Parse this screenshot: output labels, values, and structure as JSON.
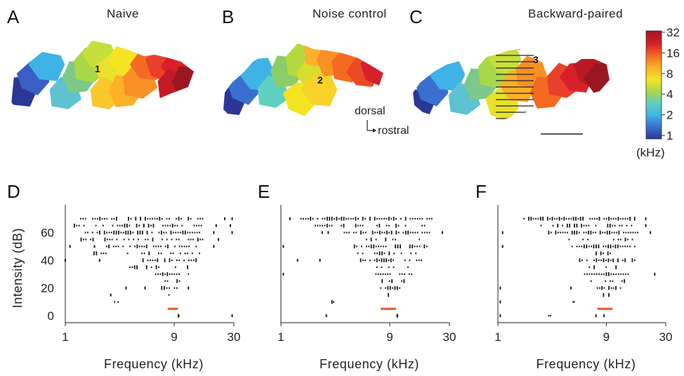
{
  "colors": {
    "text": "#222222",
    "marker": "#1a1a1a",
    "bestfreq_bar": "#e8552b",
    "colormap": [
      "#2a3797",
      "#3a6fcf",
      "#3fb3e6",
      "#5fd0c0",
      "#a8d84a",
      "#f5e424",
      "#fbb12a",
      "#f56a22",
      "#d8202a",
      "#9a1722"
    ]
  },
  "maps": [
    {
      "label": "A",
      "title": "Naive",
      "site": "1",
      "cells": [
        "#2a3797",
        "#3a5fc4",
        "#3fb3e6",
        "#5fc2d0",
        "#7cc98a",
        "#a8d84a",
        "#c7df3a",
        "#e8e22a",
        "#f5e424",
        "#f9c82a",
        "#fbb12a",
        "#f89025",
        "#f56a22",
        "#e8402a",
        "#d8202a",
        "#c51a26",
        "#9a1722"
      ]
    },
    {
      "label": "B",
      "title": "Noise control",
      "site": "2",
      "cells": [
        "#2a3797",
        "#3a6fcf",
        "#3fb3e6",
        "#5fd0c0",
        "#8ccc6a",
        "#b3d93f",
        "#d8de2e",
        "#f5e424",
        "#f8d228",
        "#fbb12a",
        "#f89025",
        "#f56a22",
        "#ec4a25",
        "#d8202a"
      ]
    },
    {
      "label": "C",
      "title": "Backward-paired",
      "site": "3",
      "cells": [
        "#2a3797",
        "#3a6fcf",
        "#3fb3e6",
        "#5fc2d0",
        "#7cc98a",
        "#a8d84a",
        "#c7df3a",
        "#e8e22a",
        "#fbb12a",
        "#f89025",
        "#f56a22",
        "#e8402a",
        "#d8202a",
        "#b81b25",
        "#9a1722"
      ]
    }
  ],
  "orientation": {
    "dorsal": "dorsal",
    "rostral": "rostral"
  },
  "colorbar": {
    "tick_labels": [
      "32",
      "16",
      "8",
      "4",
      "2",
      "1"
    ],
    "unit": "(kHz)"
  },
  "chart_data": [
    {
      "type": "scatter",
      "label": "D",
      "xlabel": "Frequency (kHz)",
      "ylabel": "Intensity (dB)",
      "x_scale": "log",
      "xlim": [
        1,
        30
      ],
      "ylim": [
        -5,
        80
      ],
      "x_tick_labels": [
        "1",
        "9",
        "30"
      ],
      "x_ticks": [
        1,
        9,
        30
      ],
      "y_tick_labels": [
        "0",
        "20",
        "40",
        "60"
      ],
      "y_ticks": [
        0,
        20,
        40,
        60
      ],
      "threshold_intensity": 0,
      "best_frequency_bar_khz": [
        7.9,
        9.7
      ],
      "best_frequency_bar_db": 5,
      "rows": [
        {
          "db": 70,
          "f_min": 1.3,
          "f_max": 16,
          "density": 0.7,
          "extra": [
            25,
            29
          ]
        },
        {
          "db": 65,
          "f_min": 1.2,
          "f_max": 18,
          "density": 0.55,
          "extra": [
            21,
            28
          ]
        },
        {
          "db": 60,
          "f_min": 1.5,
          "f_max": 15,
          "density": 0.75,
          "extra": [
            20,
            29
          ]
        },
        {
          "db": 55,
          "f_min": 1.25,
          "f_max": 16,
          "density": 0.45,
          "extra": [
            22
          ]
        },
        {
          "db": 50,
          "f_min": 2.3,
          "f_max": 14,
          "density": 0.8,
          "extra": [
            1.1,
            1.8,
            20
          ]
        },
        {
          "db": 45,
          "f_min": 1.7,
          "f_max": 15,
          "density": 0.35,
          "extra": []
        },
        {
          "db": 40,
          "f_min": 4.8,
          "f_max": 14,
          "density": 0.8,
          "extra": [
            1.0,
            2.0
          ]
        },
        {
          "db": 35,
          "f_min": 3.5,
          "f_max": 13,
          "density": 0.4,
          "extra": []
        },
        {
          "db": 30,
          "f_min": 6.2,
          "f_max": 12,
          "density": 0.8,
          "extra": []
        },
        {
          "db": 25,
          "f_min": 6.5,
          "f_max": 10.5,
          "density": 0.4,
          "extra": []
        },
        {
          "db": 20,
          "f_min": 7.0,
          "f_max": 10,
          "density": 0.85,
          "extra": [
            3.4,
            5.0,
            12
          ]
        },
        {
          "db": 15,
          "f_min": 8.1,
          "f_max": 9.0,
          "density": 0.5,
          "extra": [
            2.5
          ]
        },
        {
          "db": 10,
          "f_min": 2.7,
          "f_max": 2.9,
          "density": 1.0,
          "extra": []
        },
        {
          "db": 5,
          "f_min": 9.2,
          "f_max": 9.3,
          "density": 1.0,
          "extra": []
        },
        {
          "db": 0,
          "f_min": 9.8,
          "f_max": 9.9,
          "density": 1.0,
          "extra": [
            29
          ]
        }
      ]
    },
    {
      "type": "scatter",
      "label": "E",
      "xlabel": "Frequency (kHz)",
      "ylabel": "",
      "x_scale": "log",
      "xlim": [
        1,
        30
      ],
      "ylim": [
        -5,
        80
      ],
      "x_tick_labels": [
        "1",
        "9",
        "30"
      ],
      "x_ticks": [
        1,
        9,
        30
      ],
      "threshold_intensity": 0,
      "best_frequency_bar_khz": [
        7.5,
        10.2
      ],
      "best_frequency_bar_db": 5,
      "rows": [
        {
          "db": 70,
          "f_min": 1.5,
          "f_max": 21,
          "density": 0.85,
          "extra": [
            1.2
          ]
        },
        {
          "db": 65,
          "f_min": 2.0,
          "f_max": 20,
          "density": 0.5,
          "extra": []
        },
        {
          "db": 60,
          "f_min": 3.6,
          "f_max": 20,
          "density": 0.8,
          "extra": [
            2.3,
            2.6,
            26
          ]
        },
        {
          "db": 55,
          "f_min": 4.0,
          "f_max": 18,
          "density": 0.4,
          "extra": []
        },
        {
          "db": 50,
          "f_min": 4.2,
          "f_max": 19,
          "density": 0.8,
          "extra": [
            1.05
          ]
        },
        {
          "db": 45,
          "f_min": 4.5,
          "f_max": 16,
          "density": 0.4,
          "extra": []
        },
        {
          "db": 40,
          "f_min": 5.0,
          "f_max": 17,
          "density": 0.8,
          "extra": [
            1.4,
            2.2
          ]
        },
        {
          "db": 35,
          "f_min": 6.0,
          "f_max": 15,
          "density": 0.35,
          "extra": []
        },
        {
          "db": 30,
          "f_min": 6.8,
          "f_max": 14,
          "density": 0.8,
          "extra": [
            1.05
          ]
        },
        {
          "db": 25,
          "f_min": 7.0,
          "f_max": 12,
          "density": 0.35,
          "extra": []
        },
        {
          "db": 20,
          "f_min": 7.5,
          "f_max": 11,
          "density": 0.85,
          "extra": []
        },
        {
          "db": 15,
          "f_min": 8.0,
          "f_max": 10,
          "density": 0.4,
          "extra": []
        },
        {
          "db": 10,
          "f_min": 2.8,
          "f_max": 2.9,
          "density": 1.0,
          "extra": []
        },
        {
          "db": 5,
          "f_min": 9.0,
          "f_max": 9.1,
          "density": 1.0,
          "extra": []
        },
        {
          "db": 0,
          "f_min": 10.4,
          "f_max": 10.5,
          "density": 1.0,
          "extra": [
            2.5
          ]
        }
      ]
    },
    {
      "type": "scatter",
      "label": "F",
      "xlabel": "Frequency (kHz)",
      "ylabel": "",
      "x_scale": "log",
      "xlim": [
        1,
        30
      ],
      "ylim": [
        -5,
        80
      ],
      "x_tick_labels": [
        "1",
        "9",
        "30"
      ],
      "x_ticks": [
        1,
        9,
        30
      ],
      "threshold_intensity": 0,
      "best_frequency_bar_khz": [
        7.5,
        10.2
      ],
      "best_frequency_bar_db": 5,
      "rows": [
        {
          "db": 70,
          "f_min": 1.7,
          "f_max": 16,
          "density": 0.9,
          "extra": [
            20
          ]
        },
        {
          "db": 65,
          "f_min": 2.4,
          "f_max": 15,
          "density": 0.5,
          "extra": [
            20
          ]
        },
        {
          "db": 60,
          "f_min": 2.8,
          "f_max": 17,
          "density": 0.85,
          "extra": [
            1.1,
            22
          ]
        },
        {
          "db": 55,
          "f_min": 3.5,
          "f_max": 16,
          "density": 0.45,
          "extra": []
        },
        {
          "db": 50,
          "f_min": 4.5,
          "f_max": 16,
          "density": 0.85,
          "extra": [
            1.1
          ]
        },
        {
          "db": 45,
          "f_min": 5.0,
          "f_max": 15,
          "density": 0.4,
          "extra": []
        },
        {
          "db": 40,
          "f_min": 5.0,
          "f_max": 16,
          "density": 0.85,
          "extra": []
        },
        {
          "db": 35,
          "f_min": 5.5,
          "f_max": 14,
          "density": 0.4,
          "extra": []
        },
        {
          "db": 30,
          "f_min": 5.8,
          "f_max": 14,
          "density": 0.85,
          "extra": [
            24
          ]
        },
        {
          "db": 25,
          "f_min": 6.0,
          "f_max": 13,
          "density": 0.4,
          "extra": []
        },
        {
          "db": 20,
          "f_min": 7.5,
          "f_max": 12,
          "density": 0.8,
          "extra": [
            4.4,
            1.05
          ]
        },
        {
          "db": 15,
          "f_min": 8.5,
          "f_max": 10,
          "density": 0.4,
          "extra": []
        },
        {
          "db": 10,
          "f_min": 4.6,
          "f_max": 4.7,
          "density": 1.0,
          "extra": [
            1.05
          ]
        },
        {
          "db": 5,
          "f_min": 8.0,
          "f_max": 8.1,
          "density": 1.0,
          "extra": []
        },
        {
          "db": 0,
          "f_min": 2.8,
          "f_max": 2.9,
          "density": 1.0,
          "extra": [
            7.3,
            8.6,
            1.05
          ]
        }
      ]
    }
  ]
}
